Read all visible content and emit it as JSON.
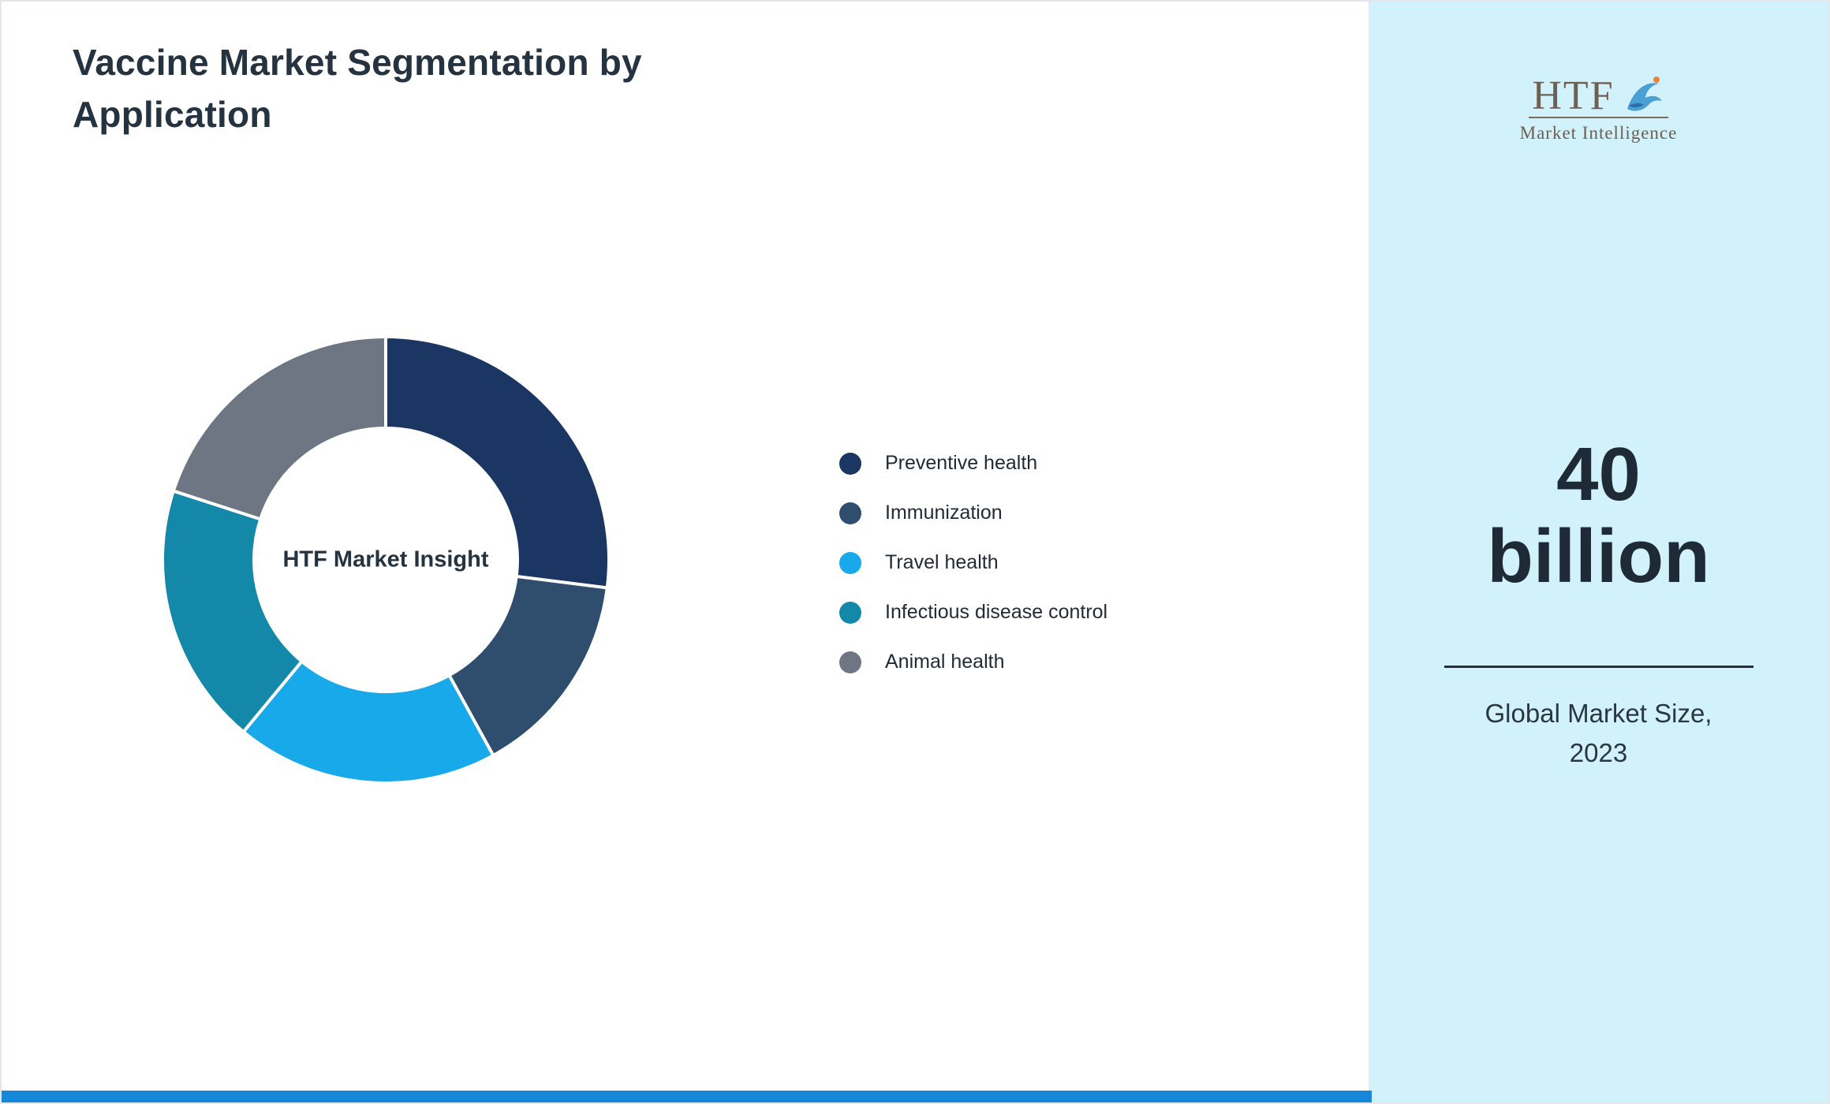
{
  "page": {
    "title": "Vaccine Market Segmentation by Application"
  },
  "chart_data": {
    "type": "pie",
    "subtype": "donut",
    "title": "Vaccine Market Segmentation by Application",
    "center_label": "HTF Market Insight",
    "categories": [
      "Preventive health",
      "Immunization",
      "Travel health",
      "Infectious disease control",
      "Animal health"
    ],
    "values": [
      27,
      15,
      19,
      19,
      20
    ],
    "unit": "percent (estimated from arc angles; no data labels shown)",
    "colors": [
      "#1c3664",
      "#2f4d6d",
      "#17a9e9",
      "#1488a8",
      "#6e7684"
    ],
    "legend_position": "right",
    "start_angle_deg": -90,
    "direction": "clockwise"
  },
  "side_panel": {
    "background_color": "#d1f2fa",
    "logo": {
      "text": "HTF",
      "subtext": "Market Intelligence",
      "icon": "dolphin-icon"
    },
    "stat_value": "40 billion",
    "stat_label": "Global Market Size, 2023"
  },
  "accents": {
    "bottom_bar_color": "#1787d9",
    "title_color": "#253341"
  }
}
